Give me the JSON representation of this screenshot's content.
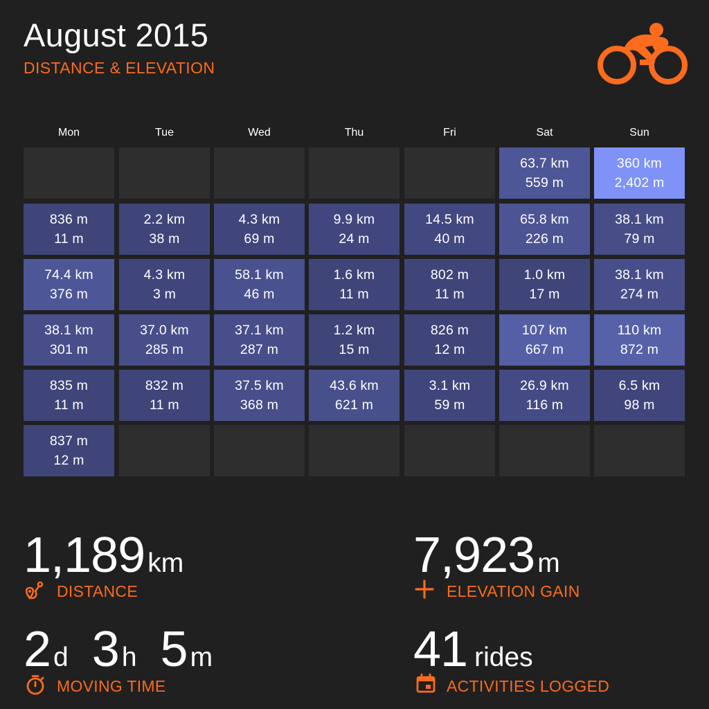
{
  "header": {
    "title": "August 2015",
    "subtitle": "DISTANCE & ELEVATION",
    "logo_icon": "cyclist-icon"
  },
  "colors": {
    "accent": "#fc6b1e",
    "background": "#202020",
    "empty_cell": "#2e2e2e",
    "cell_low": "#363a68",
    "cell_high": "#7f92f8"
  },
  "calendar": {
    "days": [
      "Mon",
      "Tue",
      "Wed",
      "Thu",
      "Fri",
      "Sat",
      "Sun"
    ],
    "weeks": [
      [
        null,
        null,
        null,
        null,
        null,
        {
          "distance": "63.7 km",
          "elevation": "559 m",
          "intensity": 0.22
        },
        {
          "distance": "360 km",
          "elevation": "2,402 m",
          "intensity": 1.0
        }
      ],
      [
        {
          "distance": "836 m",
          "elevation": "11 m",
          "intensity": 0.06
        },
        {
          "distance": "2.2 km",
          "elevation": "38 m",
          "intensity": 0.06
        },
        {
          "distance": "4.3 km",
          "elevation": "69 m",
          "intensity": 0.07
        },
        {
          "distance": "9.9 km",
          "elevation": "24 m",
          "intensity": 0.08
        },
        {
          "distance": "14.5 km",
          "elevation": "40 m",
          "intensity": 0.09
        },
        {
          "distance": "65.8 km",
          "elevation": "226 m",
          "intensity": 0.2
        },
        {
          "distance": "38.1 km",
          "elevation": "79 m",
          "intensity": 0.13
        }
      ],
      [
        {
          "distance": "74.4 km",
          "elevation": "376 m",
          "intensity": 0.22
        },
        {
          "distance": "4.3 km",
          "elevation": "3 m",
          "intensity": 0.07
        },
        {
          "distance": "58.1 km",
          "elevation": "46 m",
          "intensity": 0.17
        },
        {
          "distance": "1.6 km",
          "elevation": "11 m",
          "intensity": 0.06
        },
        {
          "distance": "802 m",
          "elevation": "11 m",
          "intensity": 0.06
        },
        {
          "distance": "1.0 km",
          "elevation": "17 m",
          "intensity": 0.06
        },
        {
          "distance": "38.1 km",
          "elevation": "274 m",
          "intensity": 0.14
        }
      ],
      [
        {
          "distance": "38.1 km",
          "elevation": "301 m",
          "intensity": 0.14
        },
        {
          "distance": "37.0 km",
          "elevation": "285 m",
          "intensity": 0.14
        },
        {
          "distance": "37.1 km",
          "elevation": "287 m",
          "intensity": 0.14
        },
        {
          "distance": "1.2 km",
          "elevation": "15 m",
          "intensity": 0.06
        },
        {
          "distance": "826 m",
          "elevation": "12 m",
          "intensity": 0.06
        },
        {
          "distance": "107 km",
          "elevation": "667 m",
          "intensity": 0.32
        },
        {
          "distance": "110 km",
          "elevation": "872 m",
          "intensity": 0.34
        }
      ],
      [
        {
          "distance": "835 m",
          "elevation": "11 m",
          "intensity": 0.06
        },
        {
          "distance": "832 m",
          "elevation": "11 m",
          "intensity": 0.06
        },
        {
          "distance": "37.5 km",
          "elevation": "368 m",
          "intensity": 0.14
        },
        {
          "distance": "43.6 km",
          "elevation": "621 m",
          "intensity": 0.16
        },
        {
          "distance": "3.1 km",
          "elevation": "59 m",
          "intensity": 0.07
        },
        {
          "distance": "26.9 km",
          "elevation": "116 m",
          "intensity": 0.11
        },
        {
          "distance": "6.5 km",
          "elevation": "98 m",
          "intensity": 0.07
        }
      ],
      [
        {
          "distance": "837 m",
          "elevation": "12 m",
          "intensity": 0.06
        },
        null,
        null,
        null,
        null,
        null,
        null
      ]
    ]
  },
  "stats": {
    "distance": {
      "value": "1,189",
      "unit": "km",
      "label": "DISTANCE",
      "icon": "route-pin-icon"
    },
    "elevation": {
      "value": "7,923",
      "unit": "m",
      "label": "ELEVATION GAIN",
      "icon": "plus-icon"
    },
    "moving_time": {
      "parts": [
        {
          "value": "2",
          "unit": "d"
        },
        {
          "value": "3",
          "unit": "h"
        },
        {
          "value": "5",
          "unit": "m"
        }
      ],
      "label": "MOVING TIME",
      "icon": "stopwatch-icon"
    },
    "activities": {
      "value": "41",
      "unit": "rides",
      "label": "ACTIVITIES LOGGED",
      "icon": "calendar-icon"
    }
  }
}
